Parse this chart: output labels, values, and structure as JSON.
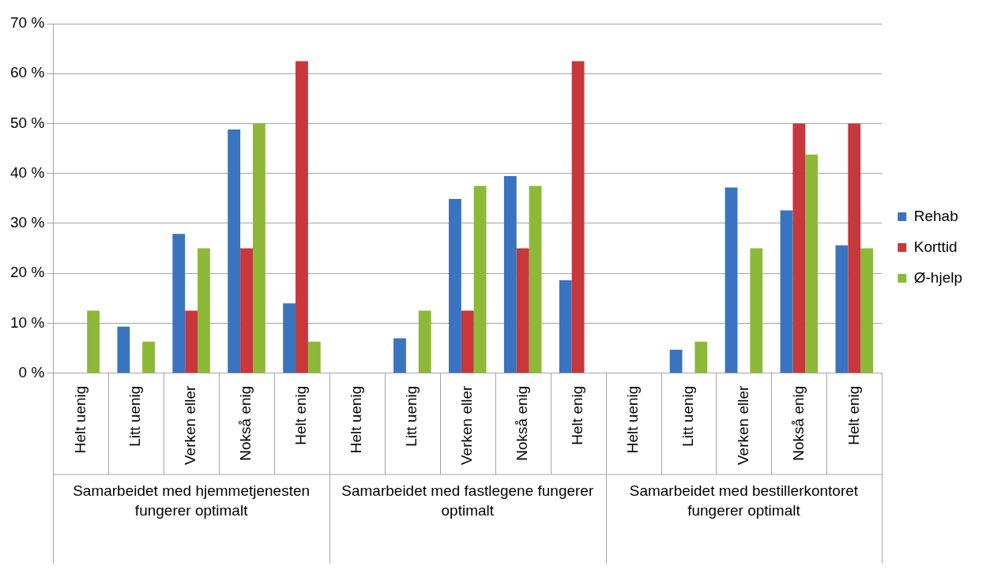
{
  "chart_data": {
    "type": "bar",
    "categories": [
      "Helt uenig",
      "Litt uenig",
      "Verken eller",
      "Nokså enig",
      "Helt enig",
      "Helt uenig",
      "Litt uenig",
      "Verken eller",
      "Nokså enig",
      "Helt enig",
      "Helt uenig",
      "Litt uenig",
      "Verken eller",
      "Nokså enig",
      "Helt enig"
    ],
    "series": [
      {
        "name": "Rehab",
        "color": "#3a74c0",
        "values": [
          0,
          9.3,
          27.9,
          48.8,
          14.0,
          0,
          7.0,
          34.9,
          39.5,
          18.6,
          0,
          4.7,
          37.2,
          32.6,
          25.6
        ]
      },
      {
        "name": "Korttid",
        "color": "#c8373a",
        "values": [
          0,
          0,
          12.5,
          25,
          62.5,
          0,
          0,
          12.5,
          25,
          62.5,
          0,
          0,
          0,
          50,
          50
        ]
      },
      {
        "name": "Ø-hjelp",
        "color": "#8cba38",
        "values": [
          12.5,
          6.3,
          25,
          50,
          6.3,
          0,
          12.5,
          37.5,
          37.5,
          0,
          0,
          6.3,
          25,
          43.8,
          25
        ]
      }
    ],
    "ylim": [
      0,
      70
    ],
    "yticks": [
      {
        "value": 0,
        "label": "0 %"
      },
      {
        "value": 10,
        "label": "10 %"
      },
      {
        "value": 20,
        "label": "20 %"
      },
      {
        "value": 30,
        "label": "30 %"
      },
      {
        "value": 40,
        "label": "40 %"
      },
      {
        "value": 50,
        "label": "50 %"
      },
      {
        "value": 60,
        "label": "60 %"
      },
      {
        "value": 70,
        "label": "70 %"
      }
    ],
    "grid": "y",
    "legend": "right",
    "annotations": [
      "Samarbeidet med hjemmetjenesten fungerer optimalt",
      "Samarbeidet med fastlegene fungerer optimalt",
      "Samarbeidet med bestillerkontoret fungerer optimalt"
    ]
  }
}
